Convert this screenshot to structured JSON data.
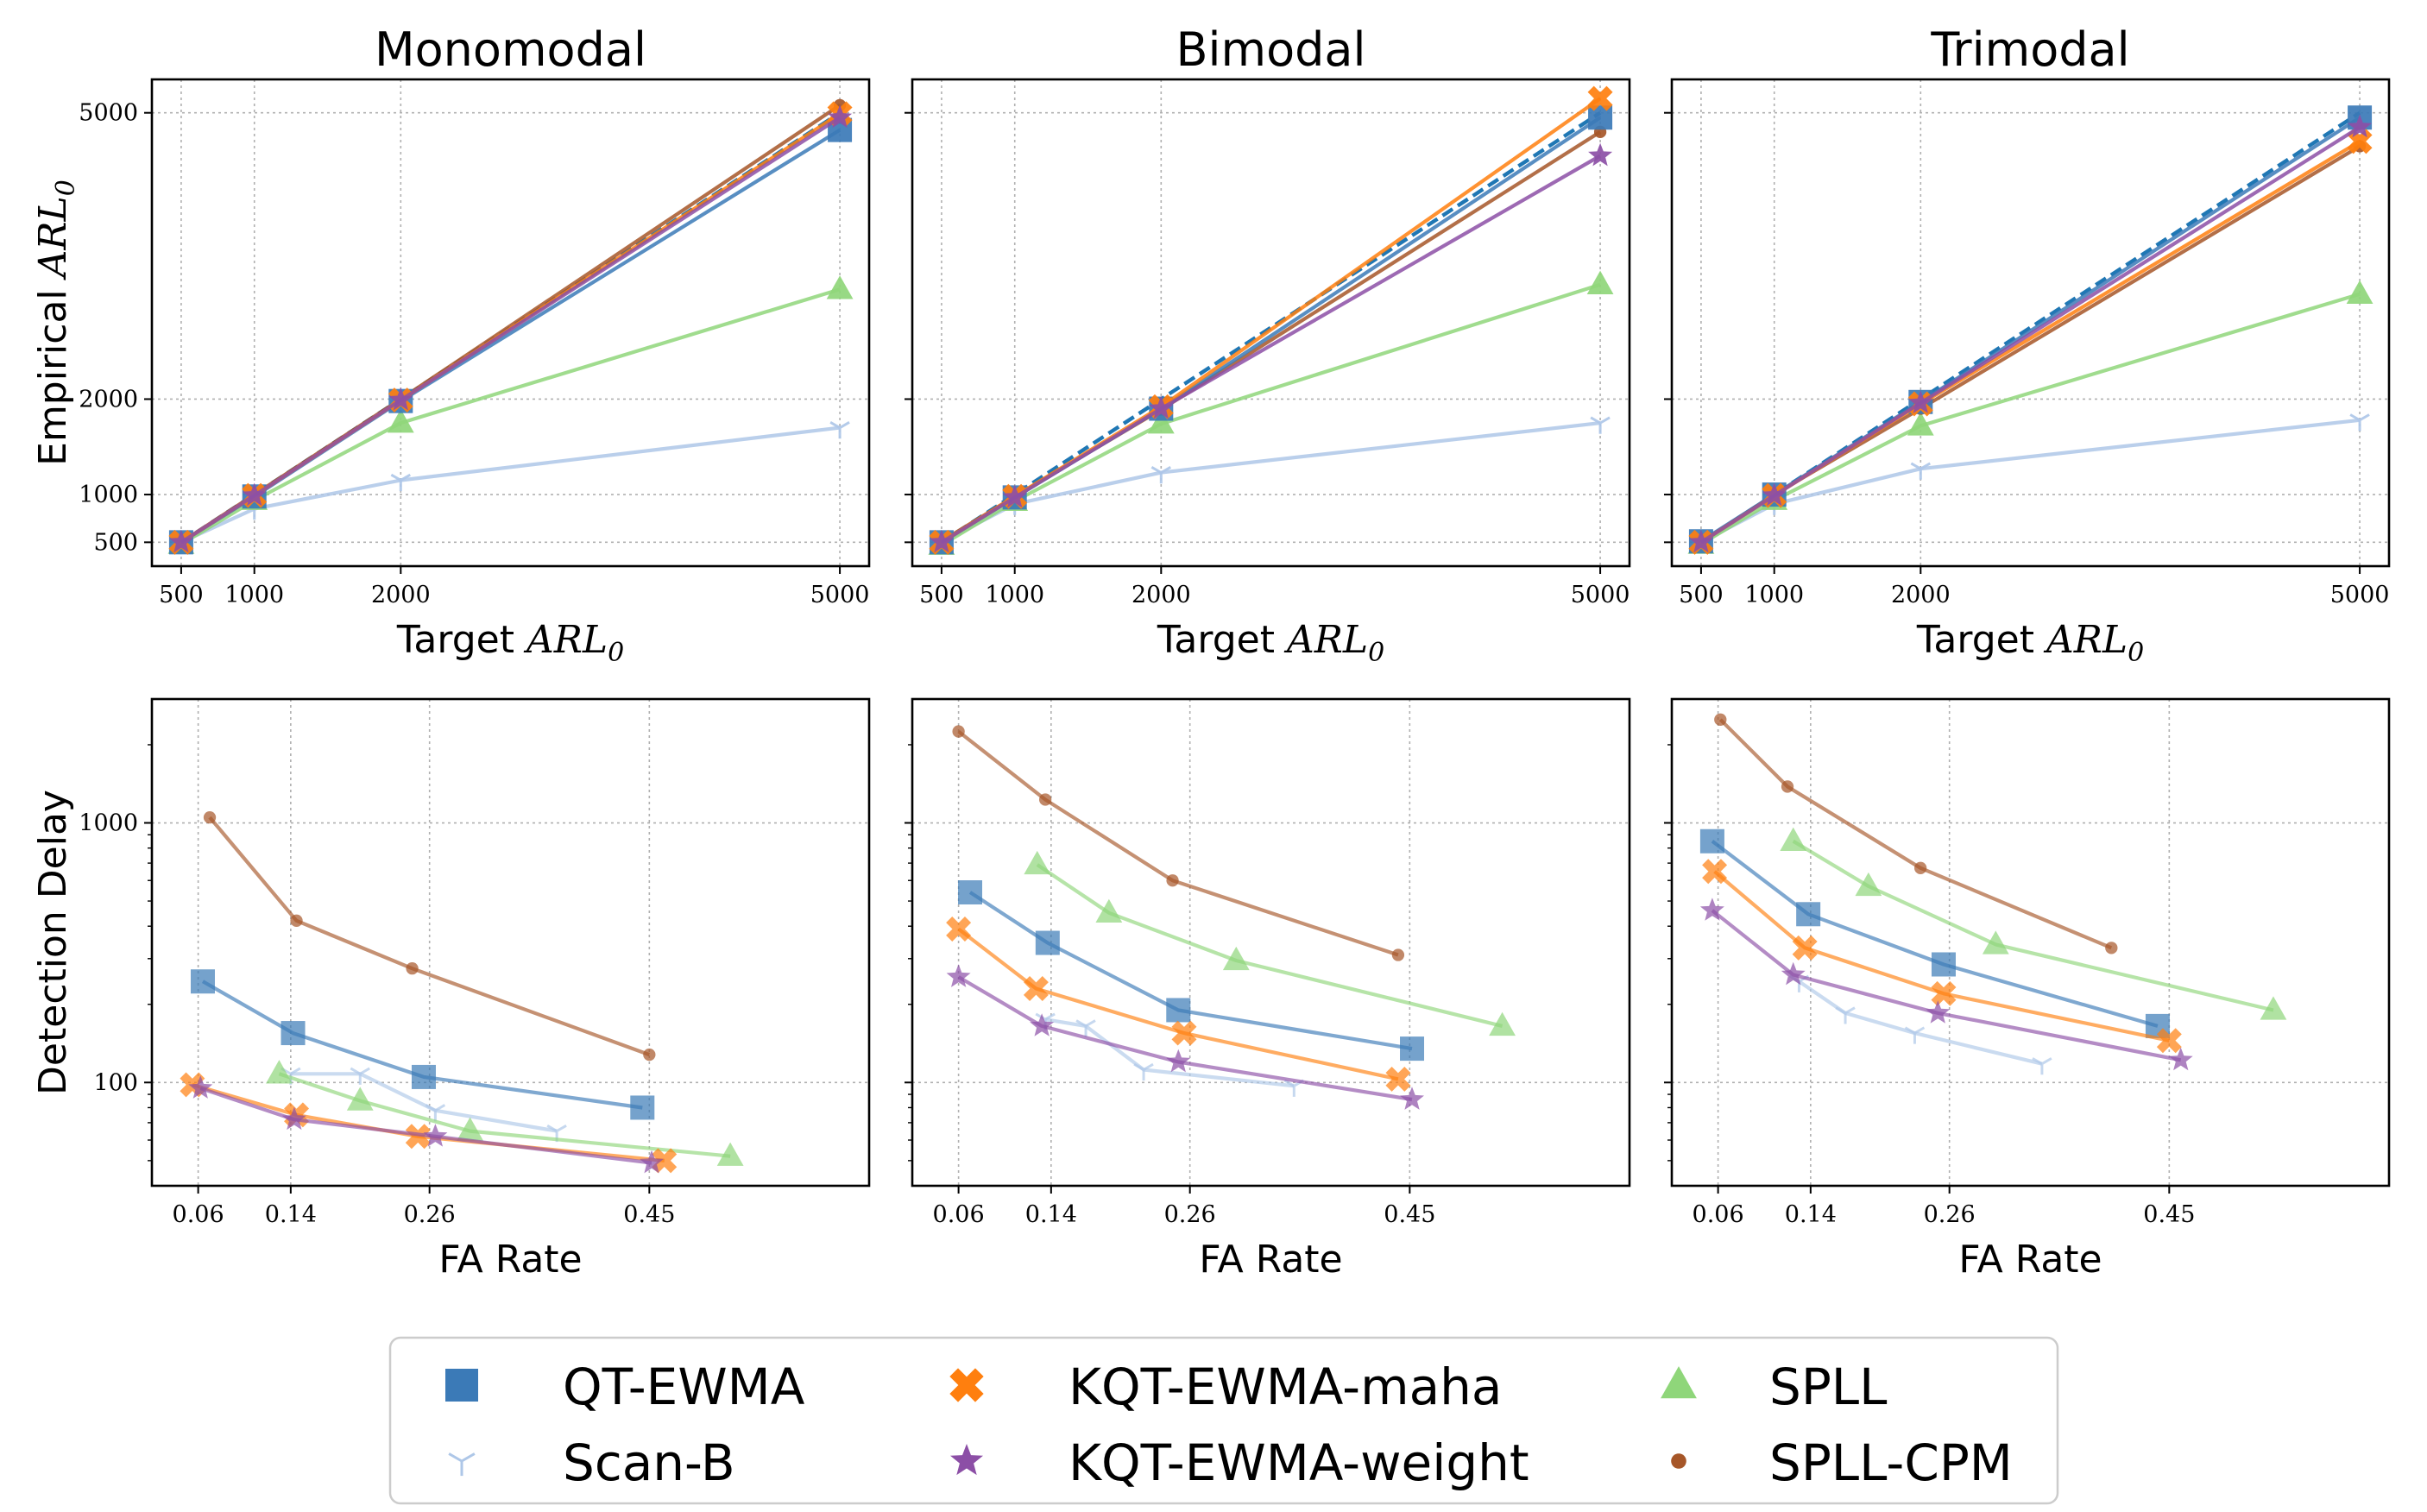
{
  "legend": {
    "items": [
      {
        "key": "qt",
        "label": "QT-EWMA"
      },
      {
        "key": "scanb",
        "label": "Scan-B"
      },
      {
        "key": "kqtm",
        "label": "KQT-EWMA-maha"
      },
      {
        "key": "kqtw",
        "label": "KQT-EWMA-weight"
      },
      {
        "key": "spll",
        "label": "SPLL"
      },
      {
        "key": "spllcpm",
        "label": "SPLL-CPM"
      }
    ]
  },
  "styles": {
    "qt": {
      "color": "#3b7ab7",
      "marker": "square"
    },
    "scanb": {
      "color": "#aec7e8",
      "marker": "tri"
    },
    "kqtm": {
      "color": "#ff7f0e",
      "marker": "x"
    },
    "kqtw": {
      "color": "#8c4fa6",
      "marker": "star"
    },
    "spll": {
      "color": "#8fd67a",
      "marker": "triangle"
    },
    "spllcpm": {
      "color": "#a65628",
      "marker": "dot"
    },
    "ideal": {
      "color": "#1f77b4",
      "marker": "none"
    }
  },
  "chart_data": [
    {
      "type": "line",
      "title": "Monomodal",
      "xlabel": "Target",
      "xlabel_math": "ARL",
      "xlabel_sub": "0",
      "ylabel": "Empirical",
      "ylabel_math": "ARL",
      "ylabel_sub": "0",
      "xscale": "linear",
      "yscale": "linear",
      "xlim": [
        300,
        5200
      ],
      "ylim": [
        250,
        5350
      ],
      "xticks": [
        500,
        1000,
        2000,
        5000
      ],
      "xtick_labels": [
        "500",
        "1000",
        "2000",
        "5000"
      ],
      "yticks": [
        500,
        1000,
        2000,
        5000
      ],
      "ytick_labels": [
        "500",
        "1000",
        "2000",
        "5000"
      ],
      "grid": true,
      "series": [
        {
          "key": "ideal",
          "name": "Target",
          "x": [
            500,
            1000,
            2000,
            5000
          ],
          "y": [
            500,
            1000,
            2000,
            5000
          ],
          "dashed": true
        },
        {
          "key": "scanb",
          "x": [
            500,
            1000,
            2000,
            5000
          ],
          "y": [
            500,
            850,
            1150,
            1700
          ]
        },
        {
          "key": "spll",
          "x": [
            500,
            1000,
            2000,
            5000
          ],
          "y": [
            480,
            940,
            1750,
            3150
          ]
        },
        {
          "key": "qt",
          "x": [
            500,
            1000,
            2000,
            5000
          ],
          "y": [
            500,
            980,
            1980,
            4820
          ]
        },
        {
          "key": "kqtm",
          "x": [
            500,
            1000,
            2000,
            5000
          ],
          "y": [
            500,
            990,
            1990,
            4990
          ]
        },
        {
          "key": "kqtw",
          "x": [
            500,
            1000,
            2000,
            5000
          ],
          "y": [
            500,
            990,
            1990,
            4950
          ]
        },
        {
          "key": "spllcpm",
          "x": [
            500,
            1000,
            2000,
            5000
          ],
          "y": [
            500,
            1000,
            2000,
            5080
          ]
        }
      ]
    },
    {
      "type": "line",
      "title": "Bimodal",
      "xlabel": "Target",
      "xlabel_math": "ARL",
      "xlabel_sub": "0",
      "ylabel": "",
      "ylabel_math": "",
      "ylabel_sub": "",
      "xscale": "linear",
      "yscale": "linear",
      "xlim": [
        300,
        5200
      ],
      "ylim": [
        250,
        5350
      ],
      "xticks": [
        500,
        1000,
        2000,
        5000
      ],
      "xtick_labels": [
        "500",
        "1000",
        "2000",
        "5000"
      ],
      "yticks": [
        500,
        1000,
        2000,
        5000
      ],
      "ytick_labels": [],
      "grid": true,
      "series": [
        {
          "key": "ideal",
          "name": "Target",
          "x": [
            500,
            1000,
            2000,
            5000
          ],
          "y": [
            500,
            1000,
            2000,
            5000
          ],
          "dashed": true
        },
        {
          "key": "scanb",
          "x": [
            500,
            1000,
            2000,
            5000
          ],
          "y": [
            500,
            900,
            1230,
            1750
          ]
        },
        {
          "key": "spll",
          "x": [
            500,
            1000,
            2000,
            5000
          ],
          "y": [
            470,
            930,
            1740,
            3200
          ]
        },
        {
          "key": "qt",
          "x": [
            500,
            1000,
            2000,
            5000
          ],
          "y": [
            500,
            970,
            1900,
            4950
          ]
        },
        {
          "key": "kqtm",
          "x": [
            500,
            1000,
            2000,
            5000
          ],
          "y": [
            500,
            980,
            1920,
            5150
          ]
        },
        {
          "key": "kqtw",
          "x": [
            500,
            1000,
            2000,
            5000
          ],
          "y": [
            500,
            970,
            1900,
            4550
          ]
        },
        {
          "key": "spllcpm",
          "x": [
            500,
            1000,
            2000,
            5000
          ],
          "y": [
            510,
            980,
            1890,
            4800
          ]
        }
      ]
    },
    {
      "type": "line",
      "title": "Trimodal",
      "xlabel": "Target",
      "xlabel_math": "ARL",
      "xlabel_sub": "0",
      "ylabel": "",
      "ylabel_math": "",
      "ylabel_sub": "",
      "xscale": "linear",
      "yscale": "linear",
      "xlim": [
        300,
        5200
      ],
      "ylim": [
        250,
        5350
      ],
      "xticks": [
        500,
        1000,
        2000,
        5000
      ],
      "xtick_labels": [
        "500",
        "1000",
        "2000",
        "5000"
      ],
      "yticks": [
        500,
        1000,
        2000,
        5000
      ],
      "ytick_labels": [],
      "grid": true,
      "series": [
        {
          "key": "ideal",
          "name": "Target",
          "x": [
            500,
            1000,
            2000,
            5000
          ],
          "y": [
            500,
            1000,
            2000,
            5000
          ],
          "dashed": true
        },
        {
          "key": "scanb",
          "x": [
            500,
            1000,
            2000,
            5000
          ],
          "y": [
            500,
            900,
            1270,
            1780
          ]
        },
        {
          "key": "spll",
          "x": [
            500,
            1000,
            2000,
            5000
          ],
          "y": [
            480,
            940,
            1720,
            3100
          ]
        },
        {
          "key": "qt",
          "x": [
            500,
            1000,
            2000,
            5000
          ],
          "y": [
            510,
            1000,
            1970,
            4950
          ]
        },
        {
          "key": "kqtm",
          "x": [
            500,
            1000,
            2000,
            5000
          ],
          "y": [
            500,
            990,
            1950,
            4700
          ]
        },
        {
          "key": "kqtw",
          "x": [
            500,
            1000,
            2000,
            5000
          ],
          "y": [
            500,
            990,
            1960,
            4850
          ]
        },
        {
          "key": "spllcpm",
          "x": [
            500,
            1000,
            2000,
            5000
          ],
          "y": [
            500,
            1000,
            1900,
            4650
          ]
        }
      ]
    },
    {
      "type": "line",
      "title": "",
      "xlabel": "FA Rate",
      "xlabel_math": "",
      "xlabel_sub": "",
      "ylabel": "Detection Delay",
      "ylabel_math": "",
      "ylabel_sub": "",
      "xscale": "linear",
      "yscale": "log",
      "xlim": [
        0.02,
        0.64
      ],
      "ylim": [
        40,
        3000
      ],
      "xticks": [
        0.06,
        0.14,
        0.26,
        0.45
      ],
      "xtick_labels": [
        "0.06",
        "0.14",
        "0.26",
        "0.45"
      ],
      "yticks": [
        100,
        1000
      ],
      "ytick_labels": [
        "100",
        "1000"
      ],
      "grid": true,
      "series": [
        {
          "key": "spllcpm",
          "x": [
            0.07,
            0.145,
            0.245,
            0.45
          ],
          "y": [
            1050,
            420,
            275,
            128
          ]
        },
        {
          "key": "qt",
          "x": [
            0.064,
            0.142,
            0.255,
            0.444
          ],
          "y": [
            245,
            155,
            105,
            80
          ]
        },
        {
          "key": "scanb",
          "x": [
            0.14,
            0.2,
            0.265,
            0.37
          ],
          "y": [
            108,
            108,
            78,
            65
          ]
        },
        {
          "key": "spll",
          "x": [
            0.13,
            0.2,
            0.295,
            0.52
          ],
          "y": [
            108,
            85,
            65,
            52
          ]
        },
        {
          "key": "kqtm",
          "x": [
            0.055,
            0.145,
            0.25,
            0.463
          ],
          "y": [
            98,
            75,
            62,
            50
          ]
        },
        {
          "key": "kqtw",
          "x": [
            0.062,
            0.143,
            0.265,
            0.452
          ],
          "y": [
            95,
            72,
            62,
            49
          ]
        }
      ]
    },
    {
      "type": "line",
      "title": "",
      "xlabel": "FA Rate",
      "xlabel_math": "",
      "xlabel_sub": "",
      "ylabel": "",
      "ylabel_math": "",
      "ylabel_sub": "",
      "xscale": "linear",
      "yscale": "log",
      "xlim": [
        0.02,
        0.64
      ],
      "ylim": [
        40,
        3000
      ],
      "xticks": [
        0.06,
        0.14,
        0.26,
        0.45
      ],
      "xtick_labels": [
        "0.06",
        "0.14",
        "0.26",
        "0.45"
      ],
      "yticks": [
        100,
        1000
      ],
      "ytick_labels": [],
      "grid": true,
      "series": [
        {
          "key": "spllcpm",
          "x": [
            0.06,
            0.135,
            0.245,
            0.44
          ],
          "y": [
            2250,
            1230,
            600,
            310
          ]
        },
        {
          "key": "spll",
          "x": [
            0.128,
            0.19,
            0.3,
            0.53
          ],
          "y": [
            690,
            450,
            295,
            165
          ]
        },
        {
          "key": "qt",
          "x": [
            0.07,
            0.137,
            0.25,
            0.452
          ],
          "y": [
            540,
            345,
            190,
            135
          ]
        },
        {
          "key": "kqtm",
          "x": [
            0.06,
            0.127,
            0.255,
            0.44
          ],
          "y": [
            390,
            230,
            155,
            103
          ]
        },
        {
          "key": "scanb",
          "x": [
            0.135,
            0.17,
            0.22,
            0.35
          ],
          "y": [
            175,
            165,
            112,
            97
          ]
        },
        {
          "key": "kqtw",
          "x": [
            0.06,
            0.132,
            0.25,
            0.452
          ],
          "y": [
            255,
            165,
            120,
            86
          ]
        }
      ]
    },
    {
      "type": "line",
      "title": "",
      "xlabel": "FA Rate",
      "xlabel_math": "",
      "xlabel_sub": "",
      "ylabel": "",
      "ylabel_math": "",
      "ylabel_sub": "",
      "xscale": "linear",
      "yscale": "log",
      "xlim": [
        0.02,
        0.64
      ],
      "ylim": [
        40,
        3000
      ],
      "xticks": [
        0.06,
        0.14,
        0.26,
        0.45
      ],
      "xtick_labels": [
        "0.06",
        "0.14",
        "0.26",
        "0.45"
      ],
      "yticks": [
        100,
        1000
      ],
      "ytick_labels": [],
      "grid": true,
      "series": [
        {
          "key": "spllcpm",
          "x": [
            0.062,
            0.12,
            0.235,
            0.4
          ],
          "y": [
            2500,
            1380,
            670,
            330
          ]
        },
        {
          "key": "spll",
          "x": [
            0.125,
            0.19,
            0.3,
            0.54
          ],
          "y": [
            850,
            570,
            340,
            190
          ]
        },
        {
          "key": "qt",
          "x": [
            0.055,
            0.138,
            0.255,
            0.44
          ],
          "y": [
            850,
            445,
            285,
            165
          ]
        },
        {
          "key": "kqtm",
          "x": [
            0.057,
            0.135,
            0.255,
            0.45
          ],
          "y": [
            650,
            330,
            220,
            145
          ]
        },
        {
          "key": "scanb",
          "x": [
            0.13,
            0.17,
            0.23,
            0.34
          ],
          "y": [
            245,
            185,
            155,
            118
          ]
        },
        {
          "key": "kqtw",
          "x": [
            0.055,
            0.125,
            0.25,
            0.46
          ],
          "y": [
            460,
            260,
            185,
            122
          ]
        }
      ]
    }
  ]
}
